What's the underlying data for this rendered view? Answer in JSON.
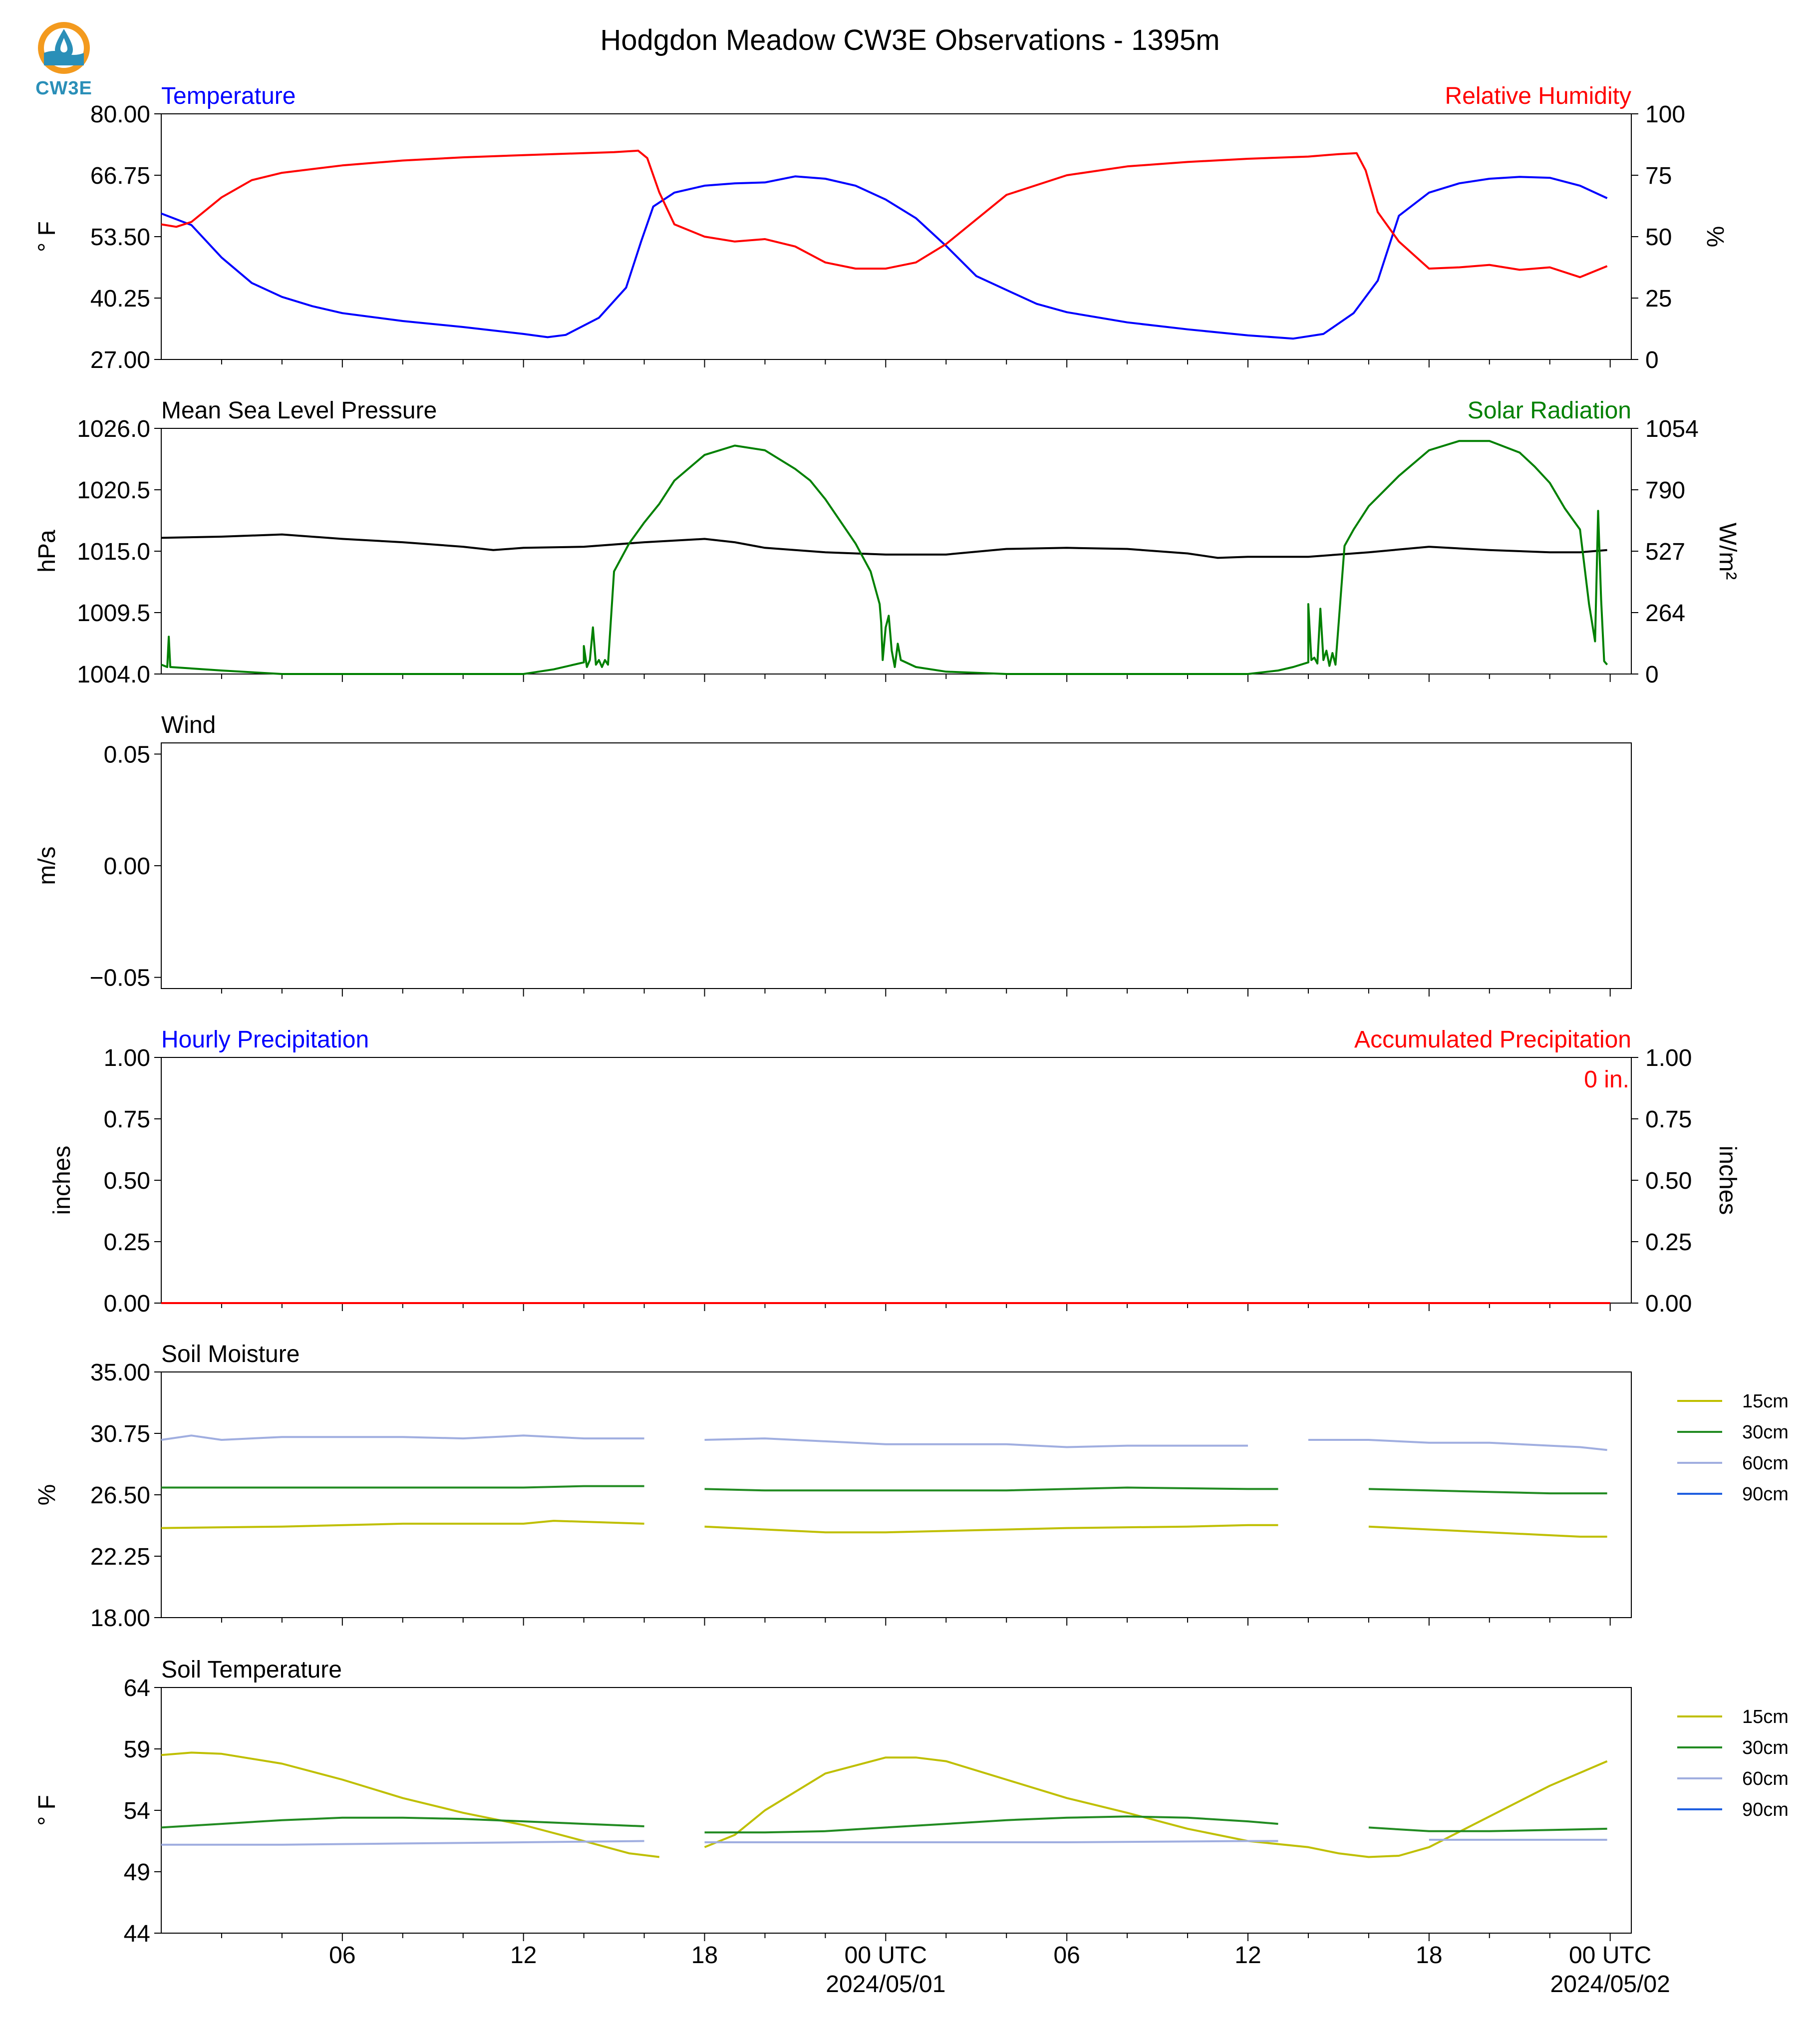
{
  "title": "Hodgdon Meadow CW3E Observations - 1395m",
  "logo": {
    "text": "CW3E",
    "icon": "water-drop-sun-icon",
    "colors": {
      "ring": "#f39a1e",
      "drop": "#2a8fb8",
      "waves": "#2a8fb8"
    }
  },
  "colors": {
    "temperature": "#0000ff",
    "relative_humidity": "#ff0000",
    "pressure": "#000000",
    "solar": "#008000",
    "precip_hourly": "#0000ff",
    "precip_accum": "#ff0000",
    "soil_15cm": "#bfbf00",
    "soil_30cm": "#228b22",
    "soil_60cm": "#a0aee0",
    "soil_90cm": "#1f5fe0"
  },
  "x_axis": {
    "ticks": [
      "06",
      "12",
      "18",
      "00 UTC",
      "06",
      "12",
      "18",
      "00 UTC"
    ],
    "tick_hours": [
      6,
      12,
      18,
      24,
      30,
      36,
      42,
      48
    ],
    "dates": [
      "2024/05/01",
      "2024/05/02"
    ],
    "date_hours": [
      24,
      48
    ]
  },
  "panels": {
    "temp_rh": {
      "left_label": "Temperature",
      "right_label": "Relative Humidity",
      "left_unit": "° F",
      "right_unit": "%",
      "left_ticks": [
        "80.00",
        "66.75",
        "53.50",
        "40.25",
        "27.00"
      ],
      "right_ticks": [
        "100",
        "75",
        "50",
        "25",
        "0"
      ]
    },
    "pressure_solar": {
      "left_label": "Mean Sea Level Pressure",
      "right_label": "Solar Radiation",
      "left_unit": "hPa",
      "right_unit": "W/m²",
      "left_ticks": [
        "1026.0",
        "1020.5",
        "1015.0",
        "1009.5",
        "1004.0"
      ],
      "right_ticks": [
        "1054",
        "790",
        "527",
        "264",
        "0"
      ]
    },
    "wind": {
      "left_label": "Wind",
      "left_unit": "m/s",
      "left_ticks": [
        "0.05",
        "0.00",
        "−0.05"
      ]
    },
    "precip": {
      "left_label": "Hourly Precipitation",
      "right_label": "Accumulated Precipitation",
      "left_unit": "inches",
      "right_unit": "inches",
      "left_ticks": [
        "1.00",
        "0.75",
        "0.50",
        "0.25",
        "0.00"
      ],
      "right_ticks": [
        "1.00",
        "0.75",
        "0.50",
        "0.25",
        "0.00"
      ],
      "annotation": "0 in."
    },
    "soil_moisture": {
      "left_label": "Soil Moisture",
      "left_unit": "%",
      "left_ticks": [
        "35.00",
        "30.75",
        "26.50",
        "22.25",
        "18.00"
      ],
      "legend": [
        "15cm",
        "30cm",
        "60cm",
        "90cm"
      ]
    },
    "soil_temp": {
      "left_label": "Soil Temperature",
      "left_unit": "° F",
      "left_ticks": [
        "64",
        "59",
        "54",
        "49",
        "44"
      ],
      "legend": [
        "15cm",
        "30cm",
        "60cm",
        "90cm"
      ]
    }
  },
  "chart_data": [
    {
      "type": "line",
      "title": "Temperature / Relative Humidity",
      "xlabel": "",
      "ylabel": "° F",
      "y2label": "%",
      "ylim": [
        27,
        80
      ],
      "y2lim": [
        0,
        100
      ],
      "series": [
        {
          "name": "Temperature",
          "axis": "left",
          "x": [
            0,
            1,
            2,
            3,
            4,
            5,
            6,
            8,
            10,
            12,
            12.8,
            13.4,
            14.5,
            15.4,
            15.9,
            16.3,
            17,
            18,
            19,
            20,
            21,
            22,
            23,
            24,
            25,
            26,
            27,
            28,
            29,
            30,
            32,
            34,
            36,
            37.5,
            38.5,
            39.5,
            40.3,
            41,
            42,
            43,
            44,
            45,
            46,
            47,
            47.9
          ],
          "y": [
            58.5,
            56,
            49,
            43.5,
            40.5,
            38.5,
            37,
            35.3,
            34,
            32.5,
            31.8,
            32.3,
            36,
            42.5,
            52.5,
            60,
            63,
            64.5,
            65,
            65.2,
            66.5,
            66,
            64.5,
            61.5,
            57.5,
            51.5,
            45,
            42,
            39,
            37.2,
            35,
            33.5,
            32.2,
            31.5,
            32.5,
            37,
            44,
            58,
            63,
            65,
            66,
            66.4,
            66.2,
            64.5,
            61.8
          ]
        },
        {
          "name": "Relative Humidity",
          "axis": "right",
          "x": [
            0,
            0.5,
            1,
            1.5,
            2,
            3,
            4,
            6,
            8,
            10,
            12,
            14,
            15,
            15.8,
            16.1,
            16.5,
            17,
            18,
            19,
            20,
            21,
            22,
            23,
            24,
            25,
            26,
            27,
            28,
            30,
            32,
            34,
            36,
            38,
            39,
            39.6,
            39.9,
            40.3,
            41,
            42,
            43,
            44,
            45,
            46,
            47,
            47.9
          ],
          "y": [
            55,
            54,
            56,
            61,
            66,
            73,
            76,
            79,
            81,
            82.3,
            83.2,
            84,
            84.4,
            85,
            82,
            68,
            55,
            50,
            48,
            49,
            46,
            39.5,
            37,
            37,
            39.5,
            47,
            57,
            67,
            75,
            78.6,
            80.4,
            81.7,
            82.6,
            83.6,
            84,
            77,
            60,
            48,
            37,
            37.5,
            38.5,
            36.5,
            37.5,
            33.5,
            38
          ]
        }
      ]
    },
    {
      "type": "line",
      "title": "Mean Sea Level Pressure / Solar Radiation",
      "xlabel": "",
      "ylabel": "hPa",
      "y2label": "W/m²",
      "ylim": [
        1004,
        1026
      ],
      "y2lim": [
        0,
        1054
      ],
      "series": [
        {
          "name": "Mean Sea Level Pressure",
          "axis": "left",
          "x": [
            0,
            2,
            4,
            6,
            8,
            10,
            11,
            12,
            14,
            16,
            18,
            19,
            20,
            22,
            24,
            26,
            28,
            30,
            32,
            34,
            35,
            36,
            38,
            40,
            42,
            44,
            46,
            47,
            47.9
          ],
          "y": [
            1016.2,
            1016.3,
            1016.5,
            1016.1,
            1015.8,
            1015.4,
            1015.1,
            1015.3,
            1015.4,
            1015.8,
            1016.1,
            1015.8,
            1015.3,
            1014.9,
            1014.7,
            1014.7,
            1015.2,
            1015.3,
            1015.2,
            1014.8,
            1014.4,
            1014.5,
            1014.5,
            1014.9,
            1015.4,
            1015.1,
            1014.9,
            1014.9,
            1015.1
          ]
        },
        {
          "name": "Solar Radiation",
          "axis": "right",
          "x": [
            0,
            0.2,
            0.25,
            0.3,
            2,
            4,
            8,
            12,
            13,
            14,
            14,
            14.1,
            14.2,
            14.3,
            14.4,
            14.5,
            14.6,
            14.7,
            14.8,
            15,
            15.5,
            16,
            16.5,
            17,
            18,
            19,
            20,
            21,
            21.5,
            22,
            23,
            23.5,
            23.8,
            23.85,
            23.9,
            24,
            24.1,
            24.2,
            24.3,
            24.4,
            24.5,
            25,
            26,
            28,
            32,
            36,
            37,
            37.5,
            38,
            38,
            38.1,
            38.2,
            38.3,
            38.4,
            38.5,
            38.6,
            38.7,
            38.8,
            38.9,
            39.2,
            39.5,
            40,
            41,
            42,
            43,
            44,
            45,
            45.5,
            46,
            46.5,
            47,
            47.3,
            47.5,
            47.6,
            47.7,
            47.8,
            47.9
          ],
          "y": [
            40,
            30,
            160,
            30,
            15,
            0,
            0,
            0,
            20,
            50,
            120,
            30,
            60,
            200,
            40,
            60,
            30,
            60,
            40,
            440,
            560,
            650,
            730,
            830,
            940,
            980,
            960,
            880,
            830,
            750,
            560,
            440,
            300,
            220,
            60,
            200,
            250,
            100,
            30,
            130,
            60,
            30,
            10,
            0,
            0,
            0,
            15,
            30,
            50,
            300,
            60,
            70,
            45,
            280,
            60,
            100,
            35,
            90,
            40,
            550,
            620,
            720,
            850,
            960,
            1000,
            1000,
            950,
            890,
            820,
            710,
            620,
            300,
            140,
            700,
            320,
            55,
            40
          ]
        }
      ]
    },
    {
      "type": "line",
      "title": "Wind",
      "xlabel": "",
      "ylabel": "m/s",
      "ylim": [
        -0.055,
        0.055
      ],
      "series": []
    },
    {
      "type": "line",
      "title": "Hourly Precipitation / Accumulated Precipitation",
      "xlabel": "",
      "ylabel": "inches",
      "y2label": "inches",
      "ylim": [
        0,
        1
      ],
      "y2lim": [
        0,
        1
      ],
      "series": [
        {
          "name": "Hourly Precipitation",
          "axis": "left",
          "x": [
            0,
            48
          ],
          "y": [
            0,
            0
          ]
        },
        {
          "name": "Accumulated Precipitation",
          "axis": "right",
          "x": [
            0,
            48
          ],
          "y": [
            0,
            0
          ]
        }
      ]
    },
    {
      "type": "line",
      "title": "Soil Moisture",
      "xlabel": "",
      "ylabel": "%",
      "ylim": [
        18,
        35
      ],
      "series": [
        {
          "name": "15cm",
          "x": [
            0,
            4,
            8,
            12,
            13,
            16,
            17,
            18,
            20,
            22,
            24,
            26,
            28,
            30,
            34,
            36,
            37,
            38,
            40,
            42,
            44,
            46,
            47,
            47.9
          ],
          "y": [
            24.2,
            24.3,
            24.5,
            24.5,
            24.7,
            24.5,
            null,
            24.3,
            24.1,
            23.9,
            23.9,
            24,
            24.1,
            24.2,
            24.3,
            24.4,
            24.4,
            null,
            24.3,
            24.1,
            23.9,
            23.7,
            23.6,
            23.6
          ]
        },
        {
          "name": "30cm",
          "x": [
            0,
            4,
            8,
            12,
            14,
            16,
            17,
            18,
            20,
            24,
            28,
            32,
            36,
            37,
            38,
            40,
            42,
            44,
            46,
            47.9
          ],
          "y": [
            27,
            27,
            27,
            27,
            27.1,
            27.1,
            null,
            26.9,
            26.8,
            26.8,
            26.8,
            27,
            26.9,
            26.9,
            null,
            26.9,
            26.8,
            26.7,
            26.6,
            26.6
          ]
        },
        {
          "name": "60cm",
          "x": [
            0,
            1,
            2,
            4,
            6,
            8,
            10,
            12,
            14,
            16,
            17,
            18,
            20,
            22,
            24,
            26,
            28,
            30,
            32,
            34,
            36,
            37,
            38,
            40,
            42,
            44,
            46,
            47,
            47.9
          ],
          "y": [
            30.3,
            30.6,
            30.3,
            30.5,
            30.5,
            30.5,
            30.4,
            30.6,
            30.4,
            30.4,
            null,
            30.3,
            30.4,
            30.2,
            30,
            30,
            30,
            29.8,
            29.9,
            29.9,
            29.9,
            null,
            30.3,
            30.3,
            30.1,
            30.1,
            29.9,
            29.8,
            29.6
          ]
        }
      ]
    },
    {
      "type": "line",
      "title": "Soil Temperature",
      "xlabel": "",
      "ylabel": "° F",
      "ylim": [
        44,
        64
      ],
      "series": [
        {
          "name": "15cm",
          "x": [
            0,
            1,
            2,
            3,
            4,
            6,
            8,
            10,
            12,
            14,
            15.5,
            16.5,
            17,
            18,
            19,
            20,
            22,
            24,
            25,
            26,
            28,
            30,
            32,
            34,
            36,
            38,
            39,
            40,
            41,
            42,
            44,
            46,
            47.9
          ],
          "y": [
            58.5,
            58.7,
            58.6,
            58.2,
            57.8,
            56.5,
            55,
            53.8,
            52.8,
            51.5,
            50.5,
            50.2,
            null,
            51,
            52,
            54,
            57,
            58.3,
            58.3,
            58,
            56.5,
            55,
            53.8,
            52.5,
            51.5,
            51,
            50.5,
            50.2,
            50.3,
            51,
            53.5,
            56,
            58
          ]
        },
        {
          "name": "30cm",
          "x": [
            0,
            2,
            4,
            6,
            8,
            10,
            12,
            14,
            16,
            17,
            18,
            20,
            22,
            24,
            26,
            28,
            30,
            32,
            34,
            36,
            37,
            38,
            40,
            42,
            44,
            46,
            47.9
          ],
          "y": [
            52.6,
            52.9,
            53.2,
            53.4,
            53.4,
            53.3,
            53.1,
            52.9,
            52.7,
            null,
            52.2,
            52.2,
            52.3,
            52.6,
            52.9,
            53.2,
            53.4,
            53.5,
            53.4,
            53.1,
            52.9,
            null,
            52.6,
            52.3,
            52.3,
            52.4,
            52.5
          ]
        },
        {
          "name": "60cm",
          "x": [
            0,
            4,
            8,
            12,
            16,
            17,
            18,
            24,
            30,
            36,
            37,
            38,
            42,
            47.9
          ],
          "y": [
            51.2,
            51.2,
            51.3,
            51.4,
            51.5,
            null,
            51.4,
            51.4,
            51.4,
            51.5,
            51.5,
            null,
            51.6,
            51.6
          ]
        }
      ]
    }
  ]
}
